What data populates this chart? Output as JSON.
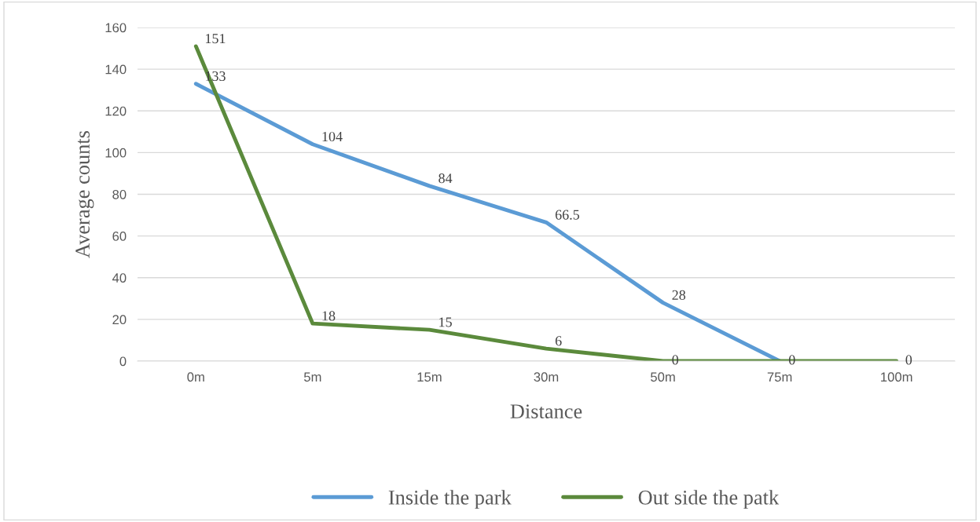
{
  "chart_data": {
    "type": "line",
    "xlabel": "Distance",
    "ylabel": "Average counts",
    "categories": [
      "0m",
      "5m",
      "15m",
      "30m",
      "50m",
      "75m",
      "100m"
    ],
    "series": [
      {
        "name": "Inside the park",
        "color": "#5b9bd5",
        "values": [
          133,
          104,
          84,
          66.5,
          28,
          0,
          null
        ],
        "value_labels": [
          "133",
          "104",
          "84",
          "66.5",
          "28",
          null,
          null
        ]
      },
      {
        "name": "Out side the patk",
        "color": "#5b8a3c",
        "values": [
          151,
          18,
          15,
          6,
          0,
          0,
          0
        ],
        "value_labels": [
          "151",
          "18",
          "15",
          "6",
          "0",
          "0",
          "0"
        ]
      }
    ],
    "ylim": [
      0,
      160
    ],
    "yticks": [
      0,
      20,
      40,
      60,
      80,
      100,
      120,
      140,
      160
    ],
    "grid": "y",
    "legend": "bottom",
    "marker": "none",
    "line_style": "solid"
  }
}
